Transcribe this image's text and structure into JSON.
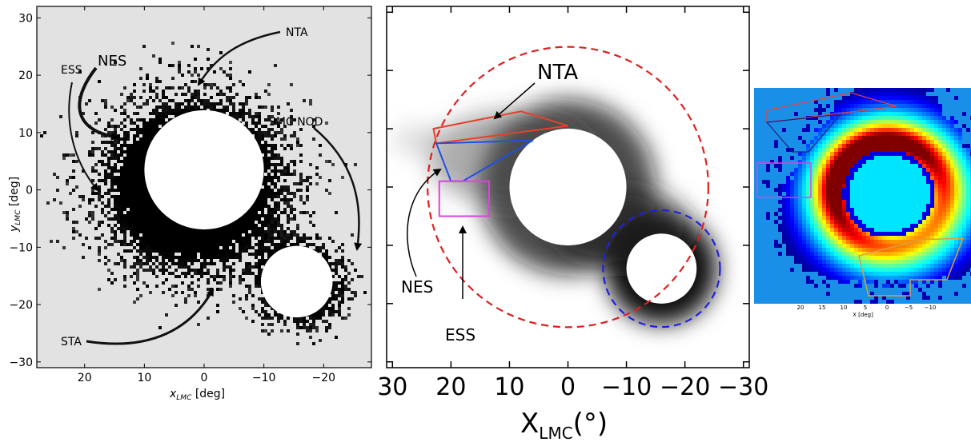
{
  "chart_data": [
    {
      "type": "scatter",
      "panel": "left",
      "xlabel": "x_LMC [deg]",
      "ylabel": "y_LMC [deg]",
      "xlim": [
        28,
        -28
      ],
      "ylim": [
        -31,
        32
      ],
      "xticks": [
        20,
        10,
        0,
        -10,
        -20
      ],
      "yticks": [
        30,
        20,
        10,
        0,
        -10,
        -20,
        -30
      ],
      "masked_circles": [
        {
          "x": 0,
          "y": 3.5,
          "r": 10
        },
        {
          "x": -15.5,
          "y": -16,
          "r": 6
        }
      ],
      "annotations": [
        {
          "text": "NTA",
          "x": -14,
          "y": 28
        },
        {
          "text": "ESS",
          "x": 26,
          "y": 22
        },
        {
          "text": "NES",
          "x": 18,
          "y": 23
        },
        {
          "text": "SMC NOD",
          "x": -15,
          "y": 12
        },
        {
          "text": "STA",
          "x": 24,
          "y": -26
        }
      ],
      "background": "#e2e2e2",
      "grid": false
    },
    {
      "type": "heatmap",
      "panel": "middle",
      "xlabel_main": "X",
      "xlabel_sub": "LMC",
      "xlabel_unit": "(°)",
      "xlim": [
        31,
        -31
      ],
      "ylim": [
        -31,
        31
      ],
      "xticks": [
        30,
        20,
        10,
        0,
        -10,
        -20,
        -30
      ],
      "masked_circles": [
        {
          "x": 0,
          "y": 0,
          "r": 10
        },
        {
          "x": -16,
          "y": -14,
          "r": 6
        }
      ],
      "regions": [
        {
          "name": "NTA",
          "color": "#e8402a",
          "points": [
            [
              22.5,
              7.5
            ],
            [
              23,
              10
            ],
            [
              8,
              13
            ],
            [
              0,
              10.5
            ]
          ]
        },
        {
          "name": "NES",
          "color": "#2050e0",
          "points": [
            [
              22.5,
              7.5
            ],
            [
              6,
              8
            ],
            [
              18,
              1
            ],
            [
              20,
              1
            ]
          ]
        },
        {
          "name": "ESS",
          "color": "#e040e0",
          "points": [
            [
              22,
              1
            ],
            [
              13.5,
              1
            ],
            [
              13.5,
              -5
            ],
            [
              22,
              -5
            ]
          ]
        }
      ],
      "dashed_circles": [
        {
          "x": 0,
          "y": 0,
          "r": 24,
          "color": "#e02020"
        },
        {
          "x": -16,
          "y": -14,
          "r": 10,
          "color": "#2020e0"
        }
      ],
      "annotations": [
        {
          "text": "NTA"
        },
        {
          "text": "NES"
        },
        {
          "text": "ESS"
        }
      ]
    },
    {
      "type": "heatmap",
      "panel": "right",
      "xlabel": "X [deg]",
      "xticks": [
        20,
        15,
        10,
        5,
        0,
        -5,
        -10
      ],
      "regions_colors": [
        "#e84040",
        "#202080",
        "#e040e0",
        "#d8a040"
      ],
      "colormap": "jet"
    }
  ],
  "left_labels": {
    "x_main": "x",
    "x_sub": "LMC",
    "x_unit": " [deg]",
    "y_main": "y",
    "y_sub": "LMC",
    "y_unit": " [deg]"
  }
}
